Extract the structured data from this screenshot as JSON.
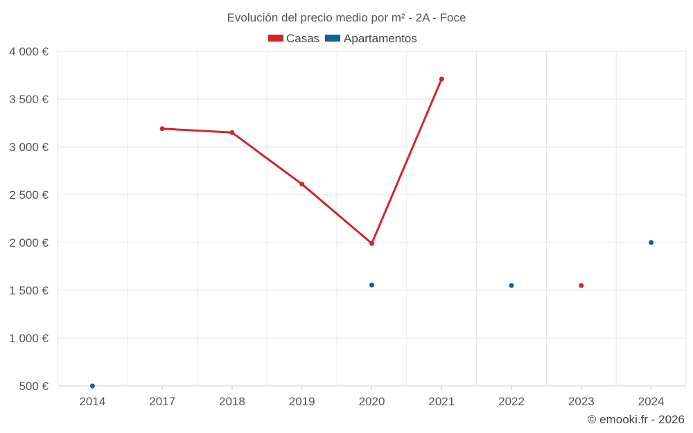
{
  "chart_data": {
    "type": "line",
    "title": "Evolución del precio medio por m² - 2A - Foce",
    "categories": [
      "2014",
      "2017",
      "2018",
      "2019",
      "2020",
      "2021",
      "2022",
      "2023",
      "2024"
    ],
    "series": [
      {
        "name": "Casas",
        "color": "#d0262b",
        "values": [
          null,
          3190,
          3150,
          2610,
          1990,
          3710,
          null,
          1550,
          null
        ]
      },
      {
        "name": "Apartamentos",
        "color": "#0e6496",
        "values": [
          500,
          null,
          null,
          null,
          1555,
          null,
          1550,
          null,
          2000
        ]
      }
    ],
    "ylim": [
      500,
      4000
    ],
    "yticks": [
      500,
      1000,
      1500,
      2000,
      2500,
      3000,
      3500,
      4000
    ],
    "ytick_labels": [
      "500 €",
      "1 000 €",
      "1 500 €",
      "2 000 €",
      "2 500 €",
      "3 000 €",
      "3 500 €",
      "4 000 €"
    ],
    "xlabel": "",
    "ylabel": "",
    "grid": true,
    "legend_position": "top-center"
  },
  "credit": "© emooki.fr - 2026"
}
